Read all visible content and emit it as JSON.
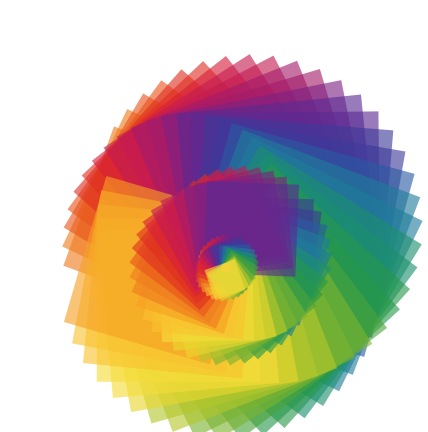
{
  "image": {
    "subject": "spiral-of-overlapping-translucent-colored-squares",
    "background_color": "#ffffff",
    "palette": [
      "#f6dc3a",
      "#f8c22e",
      "#f5a024",
      "#ef7b1e",
      "#e9541c",
      "#df2f22",
      "#d81f3a",
      "#c41b52",
      "#a31b6a",
      "#7d2283",
      "#5a2a93",
      "#3d3a9a",
      "#2a5aa2",
      "#1e7d9a",
      "#1c8f6e",
      "#27984a",
      "#4aa33a",
      "#7bb331",
      "#b5c62c",
      "#e8d62e"
    ],
    "square_opacity": 0.62,
    "rings": [
      {
        "name": "outer",
        "count": 34,
        "hue_start_deg": 55,
        "hue_direction": "counterclockwise"
      },
      {
        "name": "middle",
        "count": 30,
        "hue_start_deg": 200,
        "hue_direction": "counterclockwise"
      },
      {
        "name": "inner",
        "count": 24,
        "hue_start_deg": 20,
        "hue_direction": "counterclockwise"
      }
    ]
  }
}
